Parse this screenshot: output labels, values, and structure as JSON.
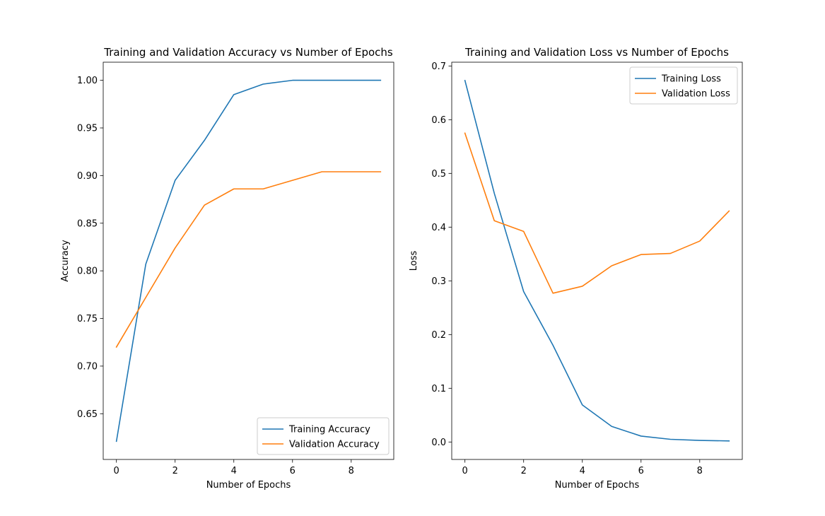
{
  "chart_data": [
    {
      "type": "line",
      "title": "Training and Validation Accuracy vs Number of Epochs",
      "xlabel": "Number of Epochs",
      "ylabel": "Accuracy",
      "xlim": [
        -0.45,
        9.45
      ],
      "ylim": [
        0.602,
        1.019
      ],
      "xticks": [
        0,
        2,
        4,
        6,
        8
      ],
      "yticks": [
        0.65,
        0.7,
        0.75,
        0.8,
        0.85,
        0.9,
        0.95,
        1.0
      ],
      "x": [
        0,
        1,
        2,
        3,
        4,
        5,
        6,
        7,
        8,
        9
      ],
      "series": [
        {
          "name": "Training Accuracy",
          "color": "#1f77b4",
          "values": [
            0.621,
            0.807,
            0.895,
            0.937,
            0.985,
            0.996,
            1.0,
            1.0,
            1.0,
            1.0
          ]
        },
        {
          "name": "Validation Accuracy",
          "color": "#ff7f0e",
          "values": [
            0.72,
            0.772,
            0.824,
            0.869,
            0.886,
            0.886,
            0.895,
            0.904,
            0.904,
            0.904
          ]
        }
      ],
      "legend": "lower right",
      "grid": false
    },
    {
      "type": "line",
      "title": "Training and Validation Loss vs Number of Epochs",
      "xlabel": "Number of Epochs",
      "ylabel": "Loss",
      "xlim": [
        -0.45,
        9.45
      ],
      "ylim": [
        -0.0325,
        0.707
      ],
      "xticks": [
        0,
        2,
        4,
        6,
        8
      ],
      "yticks": [
        0.0,
        0.1,
        0.2,
        0.3,
        0.4,
        0.5,
        0.6,
        0.7
      ],
      "x": [
        0,
        1,
        2,
        3,
        4,
        5,
        6,
        7,
        8,
        9
      ],
      "series": [
        {
          "name": "Training Loss",
          "color": "#1f77b4",
          "values": [
            0.673,
            0.463,
            0.28,
            0.18,
            0.069,
            0.029,
            0.011,
            0.005,
            0.003,
            0.002
          ]
        },
        {
          "name": "Validation Loss",
          "color": "#ff7f0e",
          "values": [
            0.575,
            0.412,
            0.392,
            0.277,
            0.29,
            0.328,
            0.349,
            0.351,
            0.374,
            0.43
          ]
        }
      ],
      "legend": "upper right",
      "grid": false
    }
  ]
}
